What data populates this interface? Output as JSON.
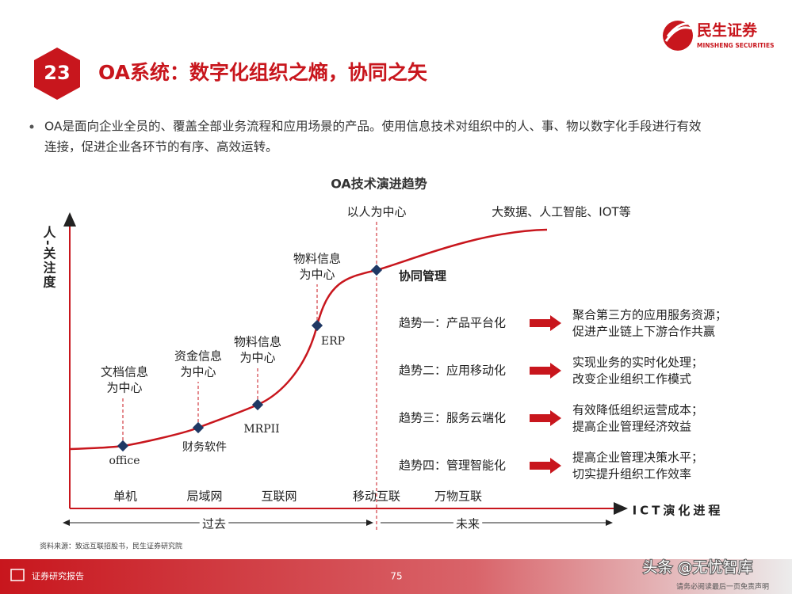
{
  "header": {
    "number": "23",
    "title": "OA系统：数字化组织之熵，协同之矢",
    "logo_cn": "民生证券",
    "logo_en": "MINSHENG SECURITIES"
  },
  "bullet": [
    "OA是面向企业全员的、覆盖全部业务流程和应用场景的产品。使用信息技术对组织中的人、事、物以数字化手段进行有效",
    "连接，促进企业各环节的有序、高效运转。"
  ],
  "diagram": {
    "title": "OA技术演进趋势",
    "y_label": "人-关注度",
    "x_label": "ICT演化进程",
    "milestones": [
      {
        "label": [
          "文档信息",
          "为中心"
        ],
        "tag": "office"
      },
      {
        "label": [
          "资金信息",
          "为中心"
        ],
        "tag": "财务软件"
      },
      {
        "label": [
          "物料信息",
          "为中心"
        ],
        "tag": "MRPII"
      },
      {
        "label": [
          "物料信息",
          "为中心"
        ],
        "tag": "ERP"
      },
      {
        "label": [
          "以人为中心"
        ]
      }
    ],
    "future": "大数据、人工智能、IOT等",
    "focus": "协同管理",
    "stages": [
      "单机",
      "局域网",
      "互联网",
      "移动互联",
      "万物互联"
    ],
    "eras": [
      "过去",
      "未来"
    ],
    "trends": [
      {
        "name": "趋势一：产品平台化",
        "desc": [
          "聚合第三方的应用服务资源；",
          "促进产业链上下游合作共赢"
        ]
      },
      {
        "name": "趋势二：应用移动化",
        "desc": [
          "实现业务的实时化处理；",
          "改变企业组织工作模式"
        ]
      },
      {
        "name": "趋势三：服务云端化",
        "desc": [
          "有效降低组织运营成本；",
          "提高企业管理经济效益"
        ]
      },
      {
        "name": "趋势四：管理智能化",
        "desc": [
          "提高企业管理决策水平；",
          "切实提升组织工作效率"
        ]
      }
    ]
  },
  "source": "资料来源：致远互联招股书，民生证券研究院",
  "footer": {
    "label": "证券研究报告",
    "page": "75",
    "note": "请务必阅读最后一页免责声明",
    "watermark": "头条 @无忧智库"
  }
}
